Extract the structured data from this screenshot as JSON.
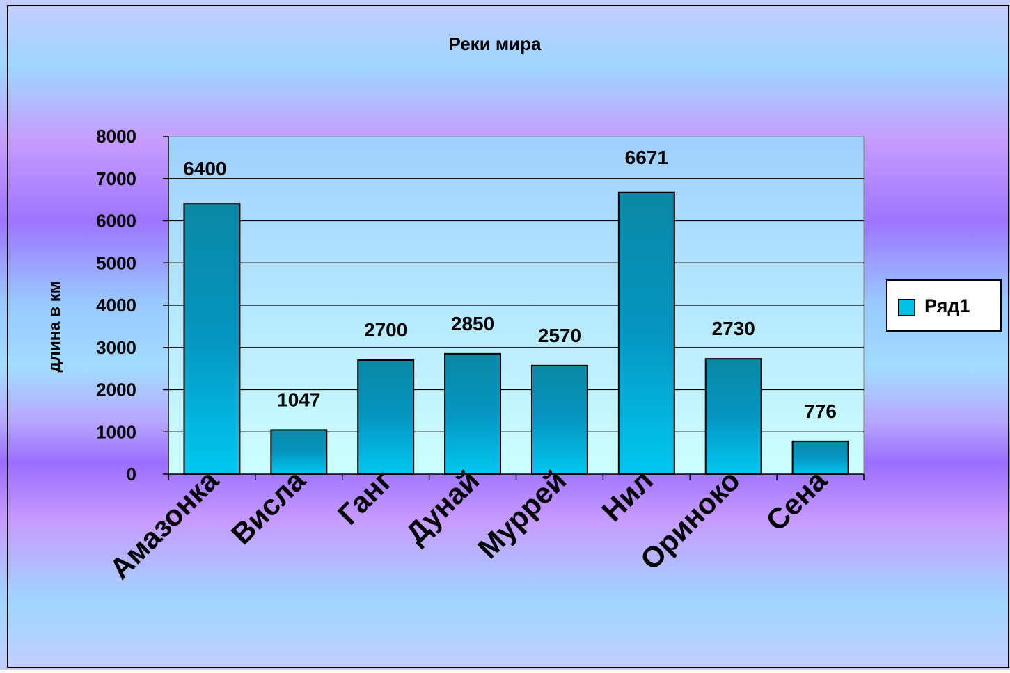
{
  "chart_data": {
    "type": "bar",
    "title": "Реки мира",
    "ylabel": "длина в км",
    "xlabel": "",
    "categories": [
      "Амазонка",
      "Висла",
      "Ганг",
      "Дунай",
      "Муррей",
      "Нил",
      "Ориноко",
      "Сена"
    ],
    "series": [
      {
        "name": "Ряд1",
        "values": [
          6400,
          1047,
          2700,
          2850,
          2570,
          6671,
          2730,
          776
        ]
      }
    ],
    "ylim": [
      0,
      8000
    ],
    "yticks": [
      0,
      1000,
      2000,
      3000,
      4000,
      5000,
      6000,
      7000,
      8000
    ],
    "grid": true,
    "legend": "right",
    "data_labels": true,
    "colors": {
      "bar_top": "#0a8aa6",
      "bar_bottom": "#00c8f0",
      "legend_swatch": "#00c0e8"
    }
  }
}
